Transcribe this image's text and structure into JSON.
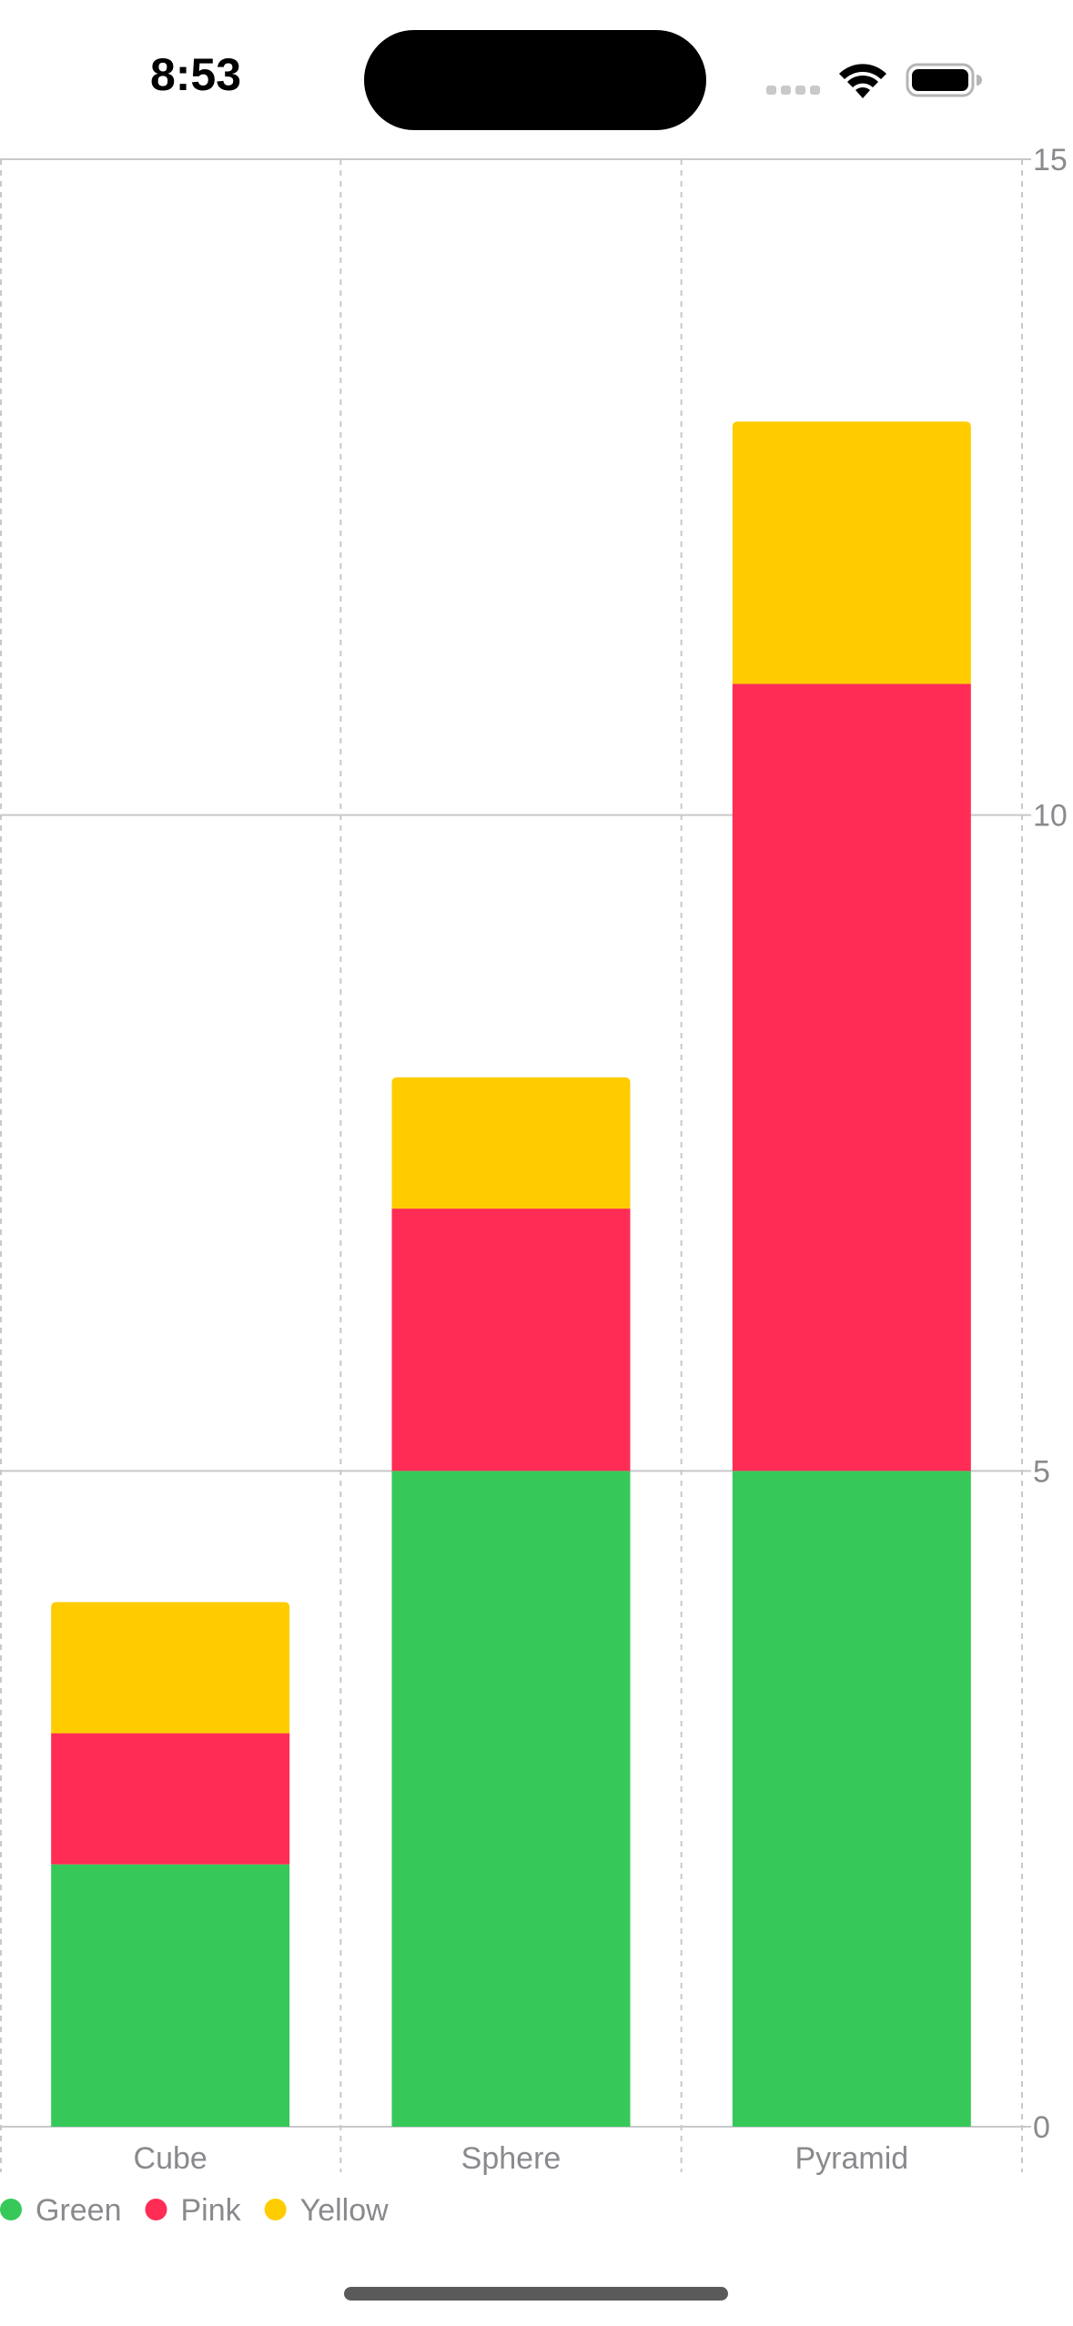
{
  "status_bar": {
    "time": "8:53"
  },
  "colors": {
    "Green": "#36c95a",
    "Pink": "#ff2d55",
    "Yellow": "#ffcc00",
    "axis_text": "#8a8a8e",
    "grid": "#c8c8cc"
  },
  "chart_data": {
    "type": "bar",
    "stacked": true,
    "categories": [
      "Cube",
      "Sphere",
      "Pyramid"
    ],
    "series": [
      {
        "name": "Green",
        "values": [
          2,
          5,
          5
        ]
      },
      {
        "name": "Pink",
        "values": [
          1,
          2,
          6
        ]
      },
      {
        "name": "Yellow",
        "values": [
          1,
          1,
          2
        ]
      }
    ],
    "y_ticks": [
      0,
      5,
      10,
      15
    ],
    "ylim": [
      0,
      15
    ],
    "y_axis_position": "right",
    "grid": true,
    "legend_position": "bottom-left"
  }
}
